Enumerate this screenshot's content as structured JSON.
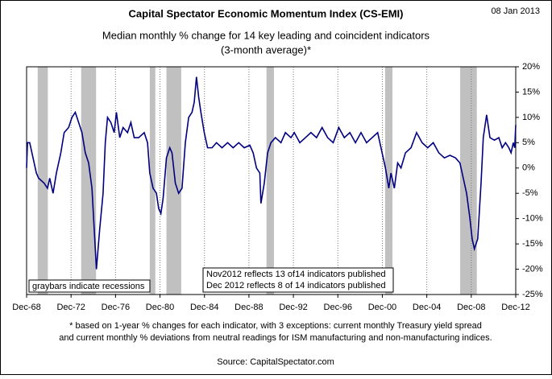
{
  "chart_data": {
    "type": "line",
    "title": "Capital Spectator Economic Momentum Index (CS-EMI)",
    "subtitle": [
      "Median monthly % change for 14 key leading and coincident indicators",
      "(3-month average)*"
    ],
    "date": "08 Jan 2013",
    "footnote": [
      "* based on 1-year % changes for each indicator, with 3 exceptions: current monthly Treasury yield spread",
      "and current monthly % deviations from neutral readings for ISM manufacturing and non-manufacturing indices."
    ],
    "source": "Source: CapitalSpectator.com",
    "annotations": [
      "graybars indicate recessions",
      "Nov2012 reflects 13 of14 indicators published",
      "Dec 2012 reflects 8 of 14 indicators published"
    ],
    "recessions": [
      [
        1969.92,
        1970.83
      ],
      [
        1973.83,
        1975.17
      ],
      [
        1980.0,
        1980.5
      ],
      [
        1981.5,
        1982.83
      ],
      [
        1990.5,
        1991.17
      ],
      [
        2001.17,
        2001.83
      ],
      [
        2007.92,
        2009.42
      ]
    ],
    "recession_color": "#c0c0c0",
    "color": "#000080",
    "xgrid": true,
    "xlim": [
      1968.92,
      2012.92
    ],
    "xticks": [
      {
        "value": 1968.92,
        "label": "Dec-68"
      },
      {
        "value": 1972.92,
        "label": "Dec-72"
      },
      {
        "value": 1976.92,
        "label": "Dec-76"
      },
      {
        "value": 1980.92,
        "label": "Dec-80"
      },
      {
        "value": 1984.92,
        "label": "Dec-84"
      },
      {
        "value": 1988.92,
        "label": "Dec-88"
      },
      {
        "value": 1992.92,
        "label": "Dec-92"
      },
      {
        "value": 1996.92,
        "label": "Dec-96"
      },
      {
        "value": 2000.92,
        "label": "Dec-00"
      },
      {
        "value": 2004.92,
        "label": "Dec-04"
      },
      {
        "value": 2008.92,
        "label": "Dec-08"
      },
      {
        "value": 2012.92,
        "label": "Dec-12"
      }
    ],
    "ylim": [
      -25,
      20
    ],
    "yticks": [
      {
        "value": -25,
        "label": "-25%"
      },
      {
        "value": -20,
        "label": "-20%"
      },
      {
        "value": -15,
        "label": "-15%"
      },
      {
        "value": -10,
        "label": "-10%"
      },
      {
        "value": -5,
        "label": "-5%"
      },
      {
        "value": 0,
        "label": "0%"
      },
      {
        "value": 5,
        "label": "5%"
      },
      {
        "value": 10,
        "label": "10%"
      },
      {
        "value": 15,
        "label": "15%"
      },
      {
        "value": 20,
        "label": "20%"
      }
    ],
    "x": [
      1968.92,
      1969.0,
      1969.2,
      1969.5,
      1969.8,
      1970.0,
      1970.5,
      1970.8,
      1971.0,
      1971.3,
      1971.6,
      1972.0,
      1972.3,
      1972.7,
      1973.0,
      1973.3,
      1973.6,
      1973.9,
      1974.2,
      1974.5,
      1974.8,
      1975.0,
      1975.2,
      1975.5,
      1975.8,
      1976.0,
      1976.2,
      1976.5,
      1976.8,
      1977.0,
      1977.3,
      1977.6,
      1978.0,
      1978.3,
      1978.6,
      1979.0,
      1979.5,
      1979.8,
      1980.0,
      1980.3,
      1980.6,
      1980.8,
      1981.0,
      1981.2,
      1981.5,
      1981.8,
      1982.0,
      1982.3,
      1982.6,
      1982.9,
      1983.2,
      1983.5,
      1983.8,
      1984.0,
      1984.2,
      1984.4,
      1984.6,
      1984.9,
      1985.2,
      1985.6,
      1986.0,
      1986.5,
      1987.0,
      1987.5,
      1988.0,
      1988.5,
      1989.0,
      1989.3,
      1989.6,
      1989.9,
      1990.0,
      1990.3,
      1990.6,
      1990.9,
      1991.3,
      1991.8,
      1992.2,
      1992.7,
      1993.0,
      1993.5,
      1994.0,
      1994.5,
      1995.0,
      1995.5,
      1996.0,
      1996.5,
      1997.0,
      1997.5,
      1998.0,
      1998.5,
      1999.0,
      1999.5,
      2000.0,
      2000.5,
      2000.9,
      2001.2,
      2001.5,
      2001.7,
      2002.0,
      2002.3,
      2002.6,
      2003.0,
      2003.5,
      2004.0,
      2004.5,
      2005.0,
      2005.5,
      2006.0,
      2006.5,
      2007.0,
      2007.5,
      2007.9,
      2008.2,
      2008.5,
      2008.8,
      2009.0,
      2009.2,
      2009.5,
      2009.8,
      2010.0,
      2010.3,
      2010.6,
      2011.0,
      2011.4,
      2011.7,
      2012.0,
      2012.3,
      2012.5,
      2012.7,
      2012.83,
      2012.92
    ],
    "values": [
      0,
      5,
      5,
      2,
      -1,
      -2,
      -3,
      -4,
      -2,
      -5,
      -1,
      3,
      7,
      8,
      10,
      11,
      9,
      7,
      3,
      1,
      -4,
      -12,
      -20,
      -12,
      -5,
      5,
      10,
      9,
      7,
      11,
      6,
      8,
      7,
      9,
      6,
      6,
      7,
      5,
      -1,
      -4,
      -5,
      -8,
      -9,
      -6,
      2,
      4,
      3,
      -3,
      -5,
      -4,
      5,
      10,
      11,
      13,
      18,
      14,
      11,
      7,
      4,
      4,
      5,
      4,
      5,
      4,
      5,
      4,
      4.5,
      3,
      0,
      -1,
      -7,
      -3,
      3,
      5,
      6,
      5,
      7,
      6,
      7,
      5,
      6,
      7,
      6,
      8,
      6,
      5,
      8,
      6,
      7,
      5,
      7,
      5,
      6,
      7,
      3,
      0,
      -4,
      -1,
      -4,
      1,
      0,
      3,
      4,
      7,
      5,
      4,
      5,
      3,
      2,
      2.5,
      2,
      1,
      -2,
      -5,
      -10,
      -14,
      -16,
      -14,
      -3,
      6,
      10.5,
      6,
      5.5,
      6,
      4,
      5,
      4,
      3,
      5,
      4,
      8.5
    ]
  }
}
